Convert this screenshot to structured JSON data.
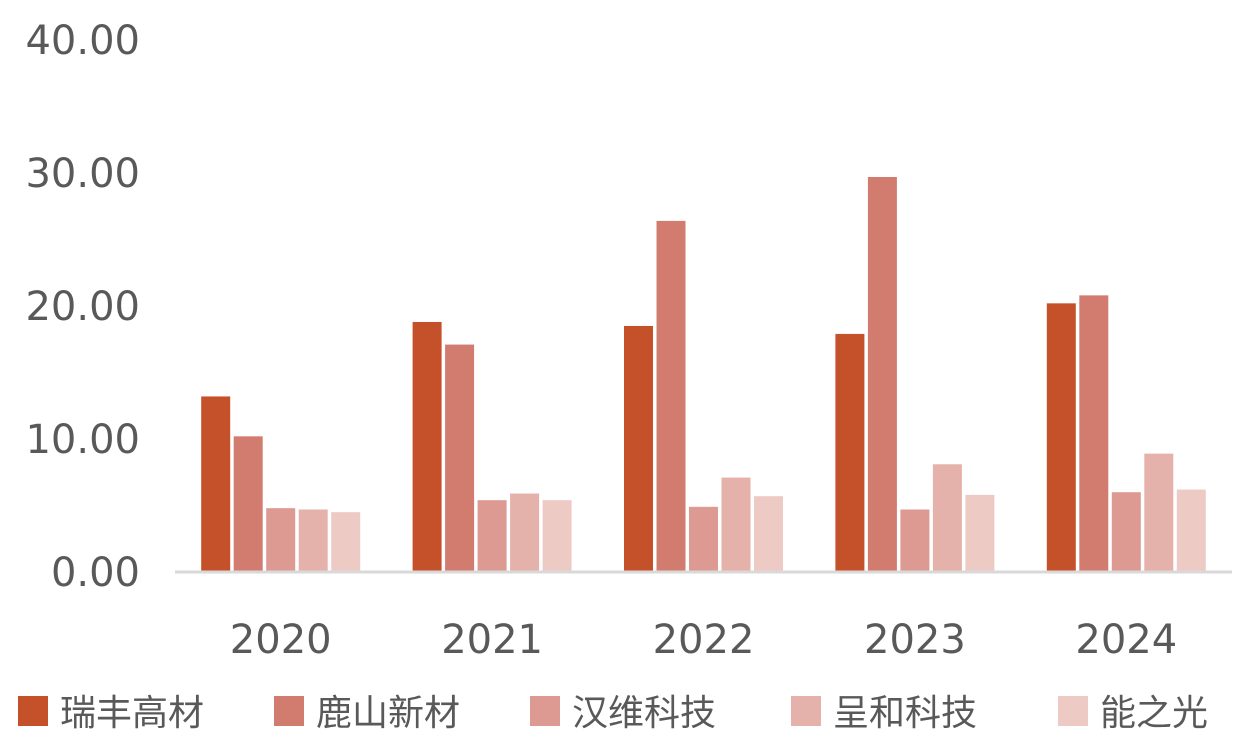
{
  "chart_data": {
    "type": "bar",
    "categories": [
      "2020",
      "2021",
      "2022",
      "2023",
      "2024"
    ],
    "ylim": [
      0,
      40
    ],
    "yticks": [
      "0.00",
      "10.00",
      "20.00",
      "30.00",
      "40.00"
    ],
    "grid": false,
    "legend_position": "bottom",
    "series": [
      {
        "name": "瑞丰高材",
        "color": "#C5512A",
        "values": [
          13.2,
          18.8,
          18.5,
          17.9,
          20.2
        ]
      },
      {
        "name": "鹿山新材",
        "color": "#D27C70",
        "values": [
          10.2,
          17.1,
          26.4,
          29.7,
          20.8
        ]
      },
      {
        "name": "汉维科技",
        "color": "#DD9A93",
        "values": [
          4.8,
          5.4,
          4.9,
          4.7,
          6.0
        ]
      },
      {
        "name": "呈和科技",
        "color": "#E5B1AB",
        "values": [
          4.7,
          5.9,
          7.1,
          8.1,
          8.9
        ]
      },
      {
        "name": "能之光",
        "color": "#EECAC5",
        "values": [
          4.5,
          5.4,
          5.7,
          5.8,
          6.2
        ]
      }
    ]
  }
}
